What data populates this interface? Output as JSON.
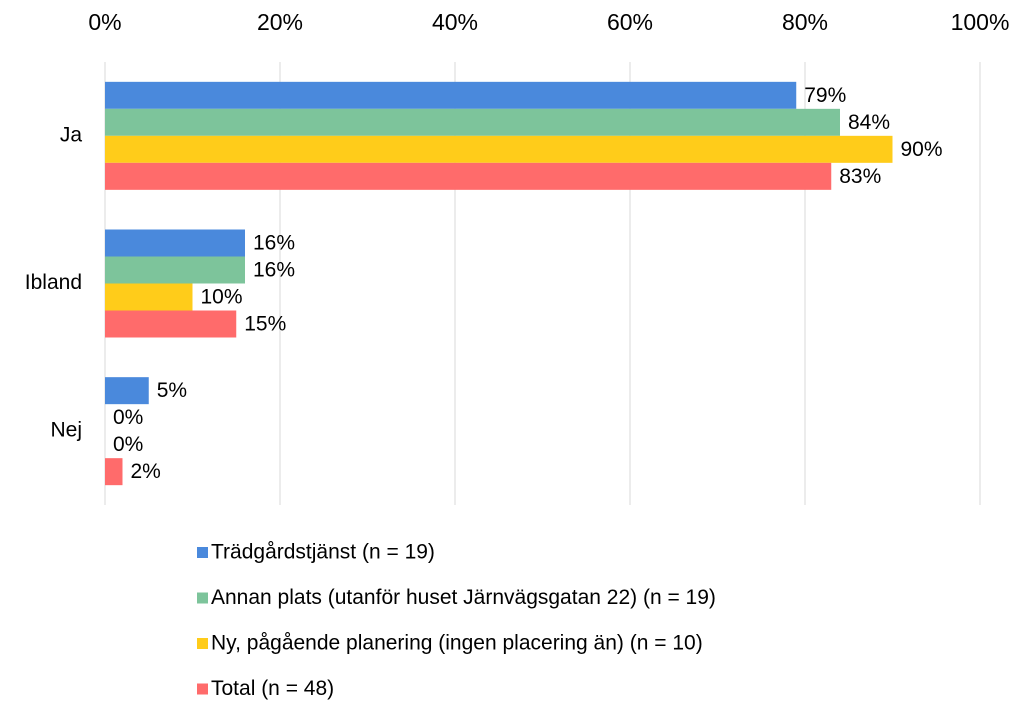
{
  "chart_data": {
    "type": "hbar",
    "categories": [
      "Ja",
      "Ibland",
      "Nej"
    ],
    "series": [
      {
        "name": "Trädgårdstjänst (n = 19)",
        "color": "#4a89dc",
        "values": [
          79,
          16,
          5
        ],
        "value_labels": [
          "79%",
          "16%",
          "5%"
        ]
      },
      {
        "name": "Annan plats (utanför huset Järnvägsgatan 22) (n = 19)",
        "color": "#7dc49b",
        "values": [
          84,
          16,
          0
        ],
        "value_labels": [
          "84%",
          "16%",
          "0%"
        ]
      },
      {
        "name": "Ny, pågående planering (ingen placering än) (n = 10)",
        "color": "#ffcc1a",
        "values": [
          90,
          10,
          0
        ],
        "value_labels": [
          "90%",
          "10%",
          "0%"
        ]
      },
      {
        "name": "Total (n = 48)",
        "color": "#ff6b6b",
        "values": [
          83,
          15,
          2
        ],
        "value_labels": [
          "83%",
          "15%",
          "2%"
        ]
      }
    ],
    "xlim": [
      0,
      100
    ],
    "xticks": [
      {
        "value": 0,
        "label": "0%"
      },
      {
        "value": 20,
        "label": "20%"
      },
      {
        "value": 40,
        "label": "40%"
      },
      {
        "value": 60,
        "label": "60%"
      },
      {
        "value": 80,
        "label": "80%"
      },
      {
        "value": 100,
        "label": "100%"
      }
    ],
    "grid": true,
    "legend": "bottom"
  }
}
